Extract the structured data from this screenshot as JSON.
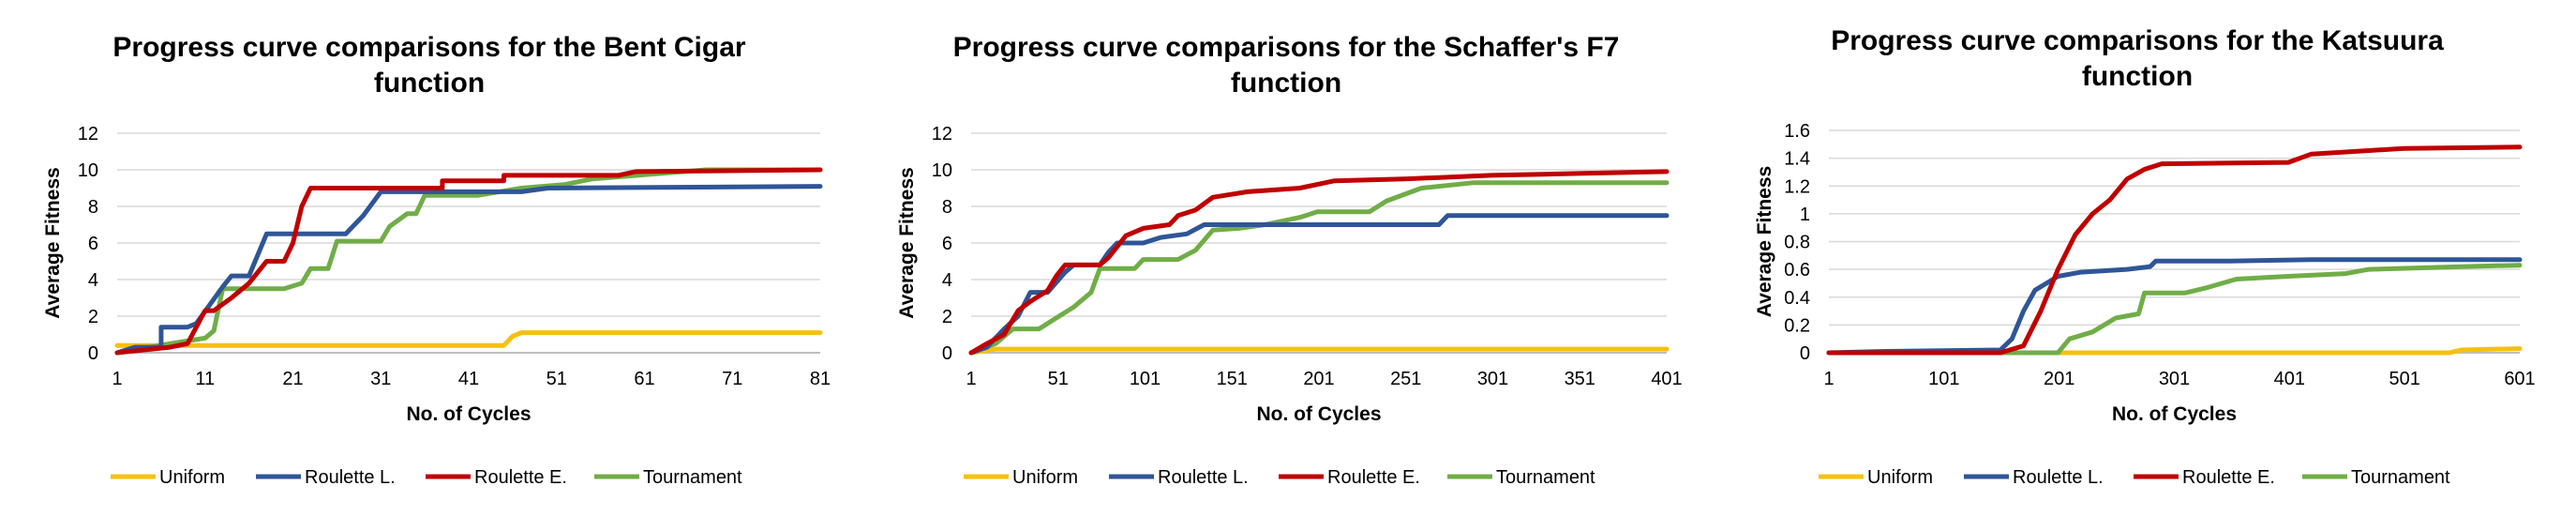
{
  "colors": {
    "Uniform": "#F5C10F",
    "Roulette L.": "#2F5597",
    "Roulette E.": "#C00000",
    "Tournament": "#70AD47"
  },
  "chart_data": [
    {
      "type": "line",
      "title": [
        "Progress curve comparisons for the Bent Cigar",
        "function"
      ],
      "xlabel": "No. of Cycles",
      "ylabel": "Average Fitness",
      "xlim": [
        1,
        81
      ],
      "ylim": [
        0,
        12
      ],
      "xticks": [
        "1",
        "11",
        "21",
        "31",
        "41",
        "51",
        "61",
        "71",
        "81"
      ],
      "yticks": [
        "0",
        "2",
        "4",
        "6",
        "8",
        "10",
        "12"
      ],
      "grid": true,
      "legend": "bottom",
      "series": [
        {
          "name": "Uniform",
          "points": [
            [
              1,
              0.4
            ],
            [
              45,
              0.4
            ],
            [
              46,
              0.9
            ],
            [
              47,
              1.1
            ],
            [
              81,
              1.1
            ]
          ]
        },
        {
          "name": "Roulette L.",
          "points": [
            [
              1,
              0
            ],
            [
              3,
              0.3
            ],
            [
              6,
              0.3
            ],
            [
              6,
              1.4
            ],
            [
              9,
              1.4
            ],
            [
              10,
              1.6
            ],
            [
              13,
              3.6
            ],
            [
              14,
              4.2
            ],
            [
              16,
              4.2
            ],
            [
              18,
              6.5
            ],
            [
              27,
              6.5
            ],
            [
              29,
              7.5
            ],
            [
              31,
              8.8
            ],
            [
              41,
              8.8
            ],
            [
              44,
              8.8
            ],
            [
              47,
              8.8
            ],
            [
              50,
              9.0
            ],
            [
              81,
              9.1
            ]
          ]
        },
        {
          "name": "Roulette E.",
          "points": [
            [
              1,
              0
            ],
            [
              7,
              0.3
            ],
            [
              9,
              0.5
            ],
            [
              11,
              2.3
            ],
            [
              12,
              2.3
            ],
            [
              14,
              3.0
            ],
            [
              16,
              3.8
            ],
            [
              18,
              5.0
            ],
            [
              20,
              5.0
            ],
            [
              21,
              6.0
            ],
            [
              22,
              8.0
            ],
            [
              23,
              9.0
            ],
            [
              31,
              9.0
            ],
            [
              38,
              9.0
            ],
            [
              38,
              9.4
            ],
            [
              45,
              9.4
            ],
            [
              45,
              9.7
            ],
            [
              58,
              9.7
            ],
            [
              60,
              9.9
            ],
            [
              81,
              10.0
            ]
          ]
        },
        {
          "name": "Tournament",
          "points": [
            [
              1,
              0
            ],
            [
              7,
              0.5
            ],
            [
              11,
              0.8
            ],
            [
              12,
              1.2
            ],
            [
              13,
              3.5
            ],
            [
              20,
              3.5
            ],
            [
              22,
              3.8
            ],
            [
              23,
              4.6
            ],
            [
              25,
              4.6
            ],
            [
              26,
              6.1
            ],
            [
              31,
              6.1
            ],
            [
              32,
              6.9
            ],
            [
              34,
              7.6
            ],
            [
              35,
              7.6
            ],
            [
              36,
              8.6
            ],
            [
              42,
              8.6
            ],
            [
              47,
              9.0
            ],
            [
              52,
              9.2
            ],
            [
              55,
              9.5
            ],
            [
              68,
              10.0
            ],
            [
              81,
              10.0
            ]
          ]
        }
      ]
    },
    {
      "type": "line",
      "title": [
        "Progress curve comparisons for the Schaffer's F7",
        "function"
      ],
      "xlabel": "No. of Cycles",
      "ylabel": "Average Fitness",
      "xlim": [
        1,
        401
      ],
      "ylim": [
        0,
        12
      ],
      "xticks": [
        "1",
        "51",
        "101",
        "151",
        "201",
        "251",
        "301",
        "351",
        "401"
      ],
      "yticks": [
        "0",
        "2",
        "4",
        "6",
        "8",
        "10",
        "12"
      ],
      "grid": true,
      "legend": "bottom",
      "series": [
        {
          "name": "Uniform",
          "points": [
            [
              1,
              0
            ],
            [
              15,
              0.2
            ],
            [
              401,
              0.2
            ]
          ]
        },
        {
          "name": "Roulette L.",
          "points": [
            [
              1,
              0
            ],
            [
              10,
              0.3
            ],
            [
              20,
              1.3
            ],
            [
              28,
              2.0
            ],
            [
              35,
              3.3
            ],
            [
              45,
              3.3
            ],
            [
              55,
              4.4
            ],
            [
              60,
              4.8
            ],
            [
              75,
              4.8
            ],
            [
              80,
              5.5
            ],
            [
              85,
              6.0
            ],
            [
              100,
              6.0
            ],
            [
              110,
              6.3
            ],
            [
              125,
              6.5
            ],
            [
              135,
              7.0
            ],
            [
              270,
              7.0
            ],
            [
              275,
              7.5
            ],
            [
              401,
              7.5
            ]
          ]
        },
        {
          "name": "Roulette E.",
          "points": [
            [
              1,
              0
            ],
            [
              10,
              0.5
            ],
            [
              20,
              1.0
            ],
            [
              28,
              2.3
            ],
            [
              35,
              2.8
            ],
            [
              45,
              3.4
            ],
            [
              50,
              4.2
            ],
            [
              55,
              4.8
            ],
            [
              75,
              4.8
            ],
            [
              80,
              5.2
            ],
            [
              90,
              6.4
            ],
            [
              100,
              6.8
            ],
            [
              115,
              7.0
            ],
            [
              120,
              7.5
            ],
            [
              130,
              7.8
            ],
            [
              140,
              8.5
            ],
            [
              160,
              8.8
            ],
            [
              190,
              9.0
            ],
            [
              210,
              9.4
            ],
            [
              250,
              9.5
            ],
            [
              300,
              9.7
            ],
            [
              350,
              9.8
            ],
            [
              401,
              9.9
            ]
          ]
        },
        {
          "name": "Tournament",
          "points": [
            [
              1,
              0
            ],
            [
              15,
              0.5
            ],
            [
              25,
              1.3
            ],
            [
              40,
              1.3
            ],
            [
              50,
              1.9
            ],
            [
              60,
              2.5
            ],
            [
              70,
              3.3
            ],
            [
              75,
              4.6
            ],
            [
              95,
              4.6
            ],
            [
              100,
              5.1
            ],
            [
              120,
              5.1
            ],
            [
              130,
              5.6
            ],
            [
              140,
              6.7
            ],
            [
              155,
              6.8
            ],
            [
              170,
              7.0
            ],
            [
              190,
              7.4
            ],
            [
              200,
              7.7
            ],
            [
              230,
              7.7
            ],
            [
              240,
              8.3
            ],
            [
              260,
              9.0
            ],
            [
              290,
              9.3
            ],
            [
              401,
              9.3
            ]
          ]
        }
      ]
    },
    {
      "type": "line",
      "title": [
        "Progress curve comparisons for the Katsuura",
        "function"
      ],
      "xlabel": "No. of Cycles",
      "ylabel": "Average Fitness",
      "xlim": [
        1,
        601
      ],
      "ylim": [
        0,
        1.6
      ],
      "xticks": [
        "1",
        "101",
        "201",
        "301",
        "401",
        "501",
        "601"
      ],
      "yticks": [
        "0",
        "0.2",
        "0.4",
        "0.6",
        "0.8",
        "1",
        "1.2",
        "1.4",
        "1.6"
      ],
      "grid": true,
      "legend": "bottom",
      "series": [
        {
          "name": "Uniform",
          "points": [
            [
              1,
              0
            ],
            [
              540,
              0
            ],
            [
              550,
              0.02
            ],
            [
              601,
              0.03
            ]
          ]
        },
        {
          "name": "Roulette L.",
          "points": [
            [
              1,
              0
            ],
            [
              50,
              0.01
            ],
            [
              150,
              0.02
            ],
            [
              160,
              0.1
            ],
            [
              170,
              0.3
            ],
            [
              180,
              0.45
            ],
            [
              190,
              0.5
            ],
            [
              200,
              0.55
            ],
            [
              220,
              0.58
            ],
            [
              260,
              0.6
            ],
            [
              280,
              0.62
            ],
            [
              285,
              0.66
            ],
            [
              350,
              0.66
            ],
            [
              420,
              0.67
            ],
            [
              601,
              0.67
            ]
          ]
        },
        {
          "name": "Roulette E.",
          "points": [
            [
              1,
              0
            ],
            [
              150,
              0
            ],
            [
              170,
              0.05
            ],
            [
              185,
              0.3
            ],
            [
              200,
              0.6
            ],
            [
              215,
              0.85
            ],
            [
              230,
              1.0
            ],
            [
              245,
              1.1
            ],
            [
              260,
              1.25
            ],
            [
              275,
              1.32
            ],
            [
              290,
              1.36
            ],
            [
              400,
              1.37
            ],
            [
              420,
              1.43
            ],
            [
              460,
              1.45
            ],
            [
              500,
              1.47
            ],
            [
              601,
              1.48
            ]
          ]
        },
        {
          "name": "Tournament",
          "points": [
            [
              1,
              0
            ],
            [
              200,
              0
            ],
            [
              210,
              0.1
            ],
            [
              230,
              0.15
            ],
            [
              250,
              0.25
            ],
            [
              270,
              0.28
            ],
            [
              275,
              0.43
            ],
            [
              310,
              0.43
            ],
            [
              330,
              0.47
            ],
            [
              355,
              0.53
            ],
            [
              400,
              0.55
            ],
            [
              450,
              0.57
            ],
            [
              470,
              0.6
            ],
            [
              550,
              0.62
            ],
            [
              601,
              0.63
            ]
          ]
        }
      ]
    }
  ]
}
